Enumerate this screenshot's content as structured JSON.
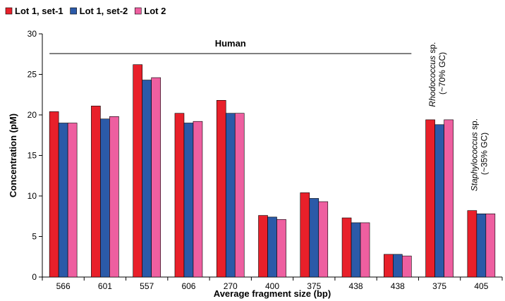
{
  "chart_data": {
    "type": "bar",
    "categories": [
      "566",
      "601",
      "557",
      "606",
      "270",
      "400",
      "375",
      "438",
      "438",
      "375",
      "405"
    ],
    "series": [
      {
        "name": "Lot 1, set-1",
        "color": "#e8202a",
        "values": [
          20.4,
          21.1,
          26.2,
          20.2,
          21.8,
          7.6,
          10.4,
          7.3,
          2.8,
          19.4,
          8.2
        ]
      },
      {
        "name": "Lot 1, set-2",
        "color": "#2b5aa8",
        "values": [
          19.0,
          19.5,
          24.3,
          19.0,
          20.2,
          7.4,
          9.7,
          6.7,
          2.8,
          18.8,
          7.8
        ]
      },
      {
        "name": "Lot 2",
        "color": "#ee5fa0",
        "values": [
          19.0,
          19.8,
          24.6,
          19.2,
          20.2,
          7.1,
          9.3,
          6.7,
          2.6,
          19.4,
          7.8
        ]
      }
    ],
    "xlabel": "Average fragment size (bp)",
    "ylabel": "Concentration (pM)",
    "ylim": [
      0,
      30
    ],
    "yticks": [
      0,
      5,
      10,
      15,
      20,
      25,
      30
    ],
    "legend_position": "top-left",
    "grid": false,
    "annotations": {
      "human": {
        "label": "Human",
        "from_category": 0,
        "to_category": 8
      },
      "rhodococcus": {
        "genus": "Rhodococcus",
        "suffix": " sp.",
        "gc": "(~70% GC)",
        "category": 9
      },
      "staphylococcus": {
        "genus": "Staphylococcus",
        "suffix": " sp.",
        "gc": "(~35% GC)",
        "category": 10
      }
    }
  }
}
